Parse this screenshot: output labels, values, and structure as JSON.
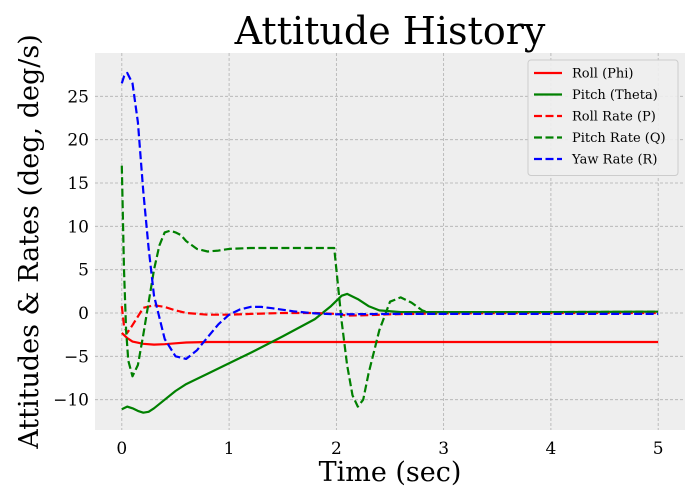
{
  "chart_data": {
    "type": "line",
    "title": "Attitude History",
    "xlabel": "Time (sec)",
    "ylabel": "Attitudes & Rates (deg, deg/s)",
    "xlim": [
      -0.25,
      5.25
    ],
    "ylim": [
      -13.5,
      30.0
    ],
    "xticks": [
      0,
      1,
      2,
      3,
      4,
      5
    ],
    "yticks": [
      -10,
      -5,
      0,
      5,
      10,
      15,
      20,
      25
    ],
    "grid": true,
    "legend_position": "top-right",
    "series": [
      {
        "name": "Roll (Phi)",
        "color": "#ff0000",
        "dash": "solid",
        "x": [
          0,
          0.05,
          0.1,
          0.2,
          0.3,
          0.4,
          0.5,
          0.6,
          0.8,
          1.0,
          1.5,
          2.0,
          2.5,
          3.0,
          4.0,
          5.0
        ],
        "y": [
          -2.3,
          -2.9,
          -3.3,
          -3.55,
          -3.65,
          -3.6,
          -3.5,
          -3.4,
          -3.35,
          -3.35,
          -3.35,
          -3.35,
          -3.35,
          -3.35,
          -3.35,
          -3.35
        ]
      },
      {
        "name": "Pitch (Theta)",
        "color": "#008000",
        "dash": "solid",
        "x": [
          0,
          0.05,
          0.1,
          0.15,
          0.2,
          0.25,
          0.3,
          0.4,
          0.5,
          0.6,
          0.8,
          1.0,
          1.2,
          1.5,
          1.8,
          1.95,
          2.05,
          2.1,
          2.2,
          2.3,
          2.4,
          2.6,
          3.0,
          4.0,
          5.0
        ],
        "y": [
          -11.1,
          -10.8,
          -11.0,
          -11.3,
          -11.5,
          -11.4,
          -11.0,
          -10.0,
          -9.0,
          -8.2,
          -7.0,
          -5.8,
          -4.6,
          -2.7,
          -0.7,
          0.8,
          2.0,
          2.2,
          1.6,
          0.8,
          0.3,
          0.1,
          0.1,
          0.1,
          0.15
        ]
      },
      {
        "name": "Roll Rate (P)",
        "color": "#ff0000",
        "dash": "dashed",
        "x": [
          0,
          0.02,
          0.05,
          0.1,
          0.15,
          0.2,
          0.3,
          0.4,
          0.5,
          0.6,
          0.8,
          1.0,
          1.2,
          1.5,
          1.8,
          2.0,
          2.1,
          2.3,
          2.5,
          3.0,
          4.0,
          5.0
        ],
        "y": [
          0.8,
          -1.5,
          -2.3,
          -1.4,
          -0.4,
          0.6,
          0.9,
          0.7,
          0.3,
          0.0,
          -0.2,
          -0.2,
          -0.1,
          0.0,
          0.0,
          -0.1,
          -0.3,
          -0.25,
          -0.15,
          -0.05,
          0.0,
          0.0
        ]
      },
      {
        "name": "Pitch Rate (Q)",
        "color": "#008000",
        "dash": "dashed",
        "x": [
          0,
          0.02,
          0.04,
          0.06,
          0.1,
          0.15,
          0.2,
          0.3,
          0.35,
          0.4,
          0.45,
          0.5,
          0.55,
          0.6,
          0.7,
          0.8,
          0.9,
          1.0,
          1.2,
          1.5,
          1.8,
          1.98,
          2.0,
          2.05,
          2.1,
          2.15,
          2.2,
          2.25,
          2.3,
          2.4,
          2.5,
          2.6,
          2.7,
          2.8,
          2.9,
          3.0,
          3.2,
          3.5,
          4.0,
          5.0
        ],
        "y": [
          17.0,
          5.0,
          -2.0,
          -5.5,
          -7.3,
          -6.0,
          -2.5,
          5.0,
          7.8,
          9.3,
          9.5,
          9.3,
          9.0,
          8.3,
          7.4,
          7.1,
          7.2,
          7.4,
          7.5,
          7.5,
          7.5,
          7.5,
          5.0,
          -1.0,
          -6.0,
          -9.5,
          -10.8,
          -10.0,
          -7.0,
          -2.0,
          1.3,
          1.8,
          1.2,
          0.3,
          -0.1,
          0.0,
          0.1,
          0.1,
          0.1,
          0.15
        ]
      },
      {
        "name": "Yaw Rate (R)",
        "color": "#0000ff",
        "dash": "dashed",
        "x": [
          0,
          0.02,
          0.05,
          0.1,
          0.15,
          0.2,
          0.25,
          0.3,
          0.4,
          0.5,
          0.6,
          0.7,
          0.8,
          0.9,
          1.0,
          1.1,
          1.2,
          1.3,
          1.4,
          1.6,
          1.8,
          2.0,
          2.5,
          3.0,
          4.0,
          5.0
        ],
        "y": [
          26.5,
          27.3,
          27.7,
          26.5,
          22.0,
          14.0,
          7.5,
          2.0,
          -3.0,
          -5.0,
          -5.3,
          -4.3,
          -2.8,
          -1.3,
          -0.2,
          0.4,
          0.7,
          0.7,
          0.55,
          0.2,
          -0.05,
          -0.15,
          -0.1,
          -0.1,
          -0.1,
          -0.1
        ]
      }
    ]
  }
}
